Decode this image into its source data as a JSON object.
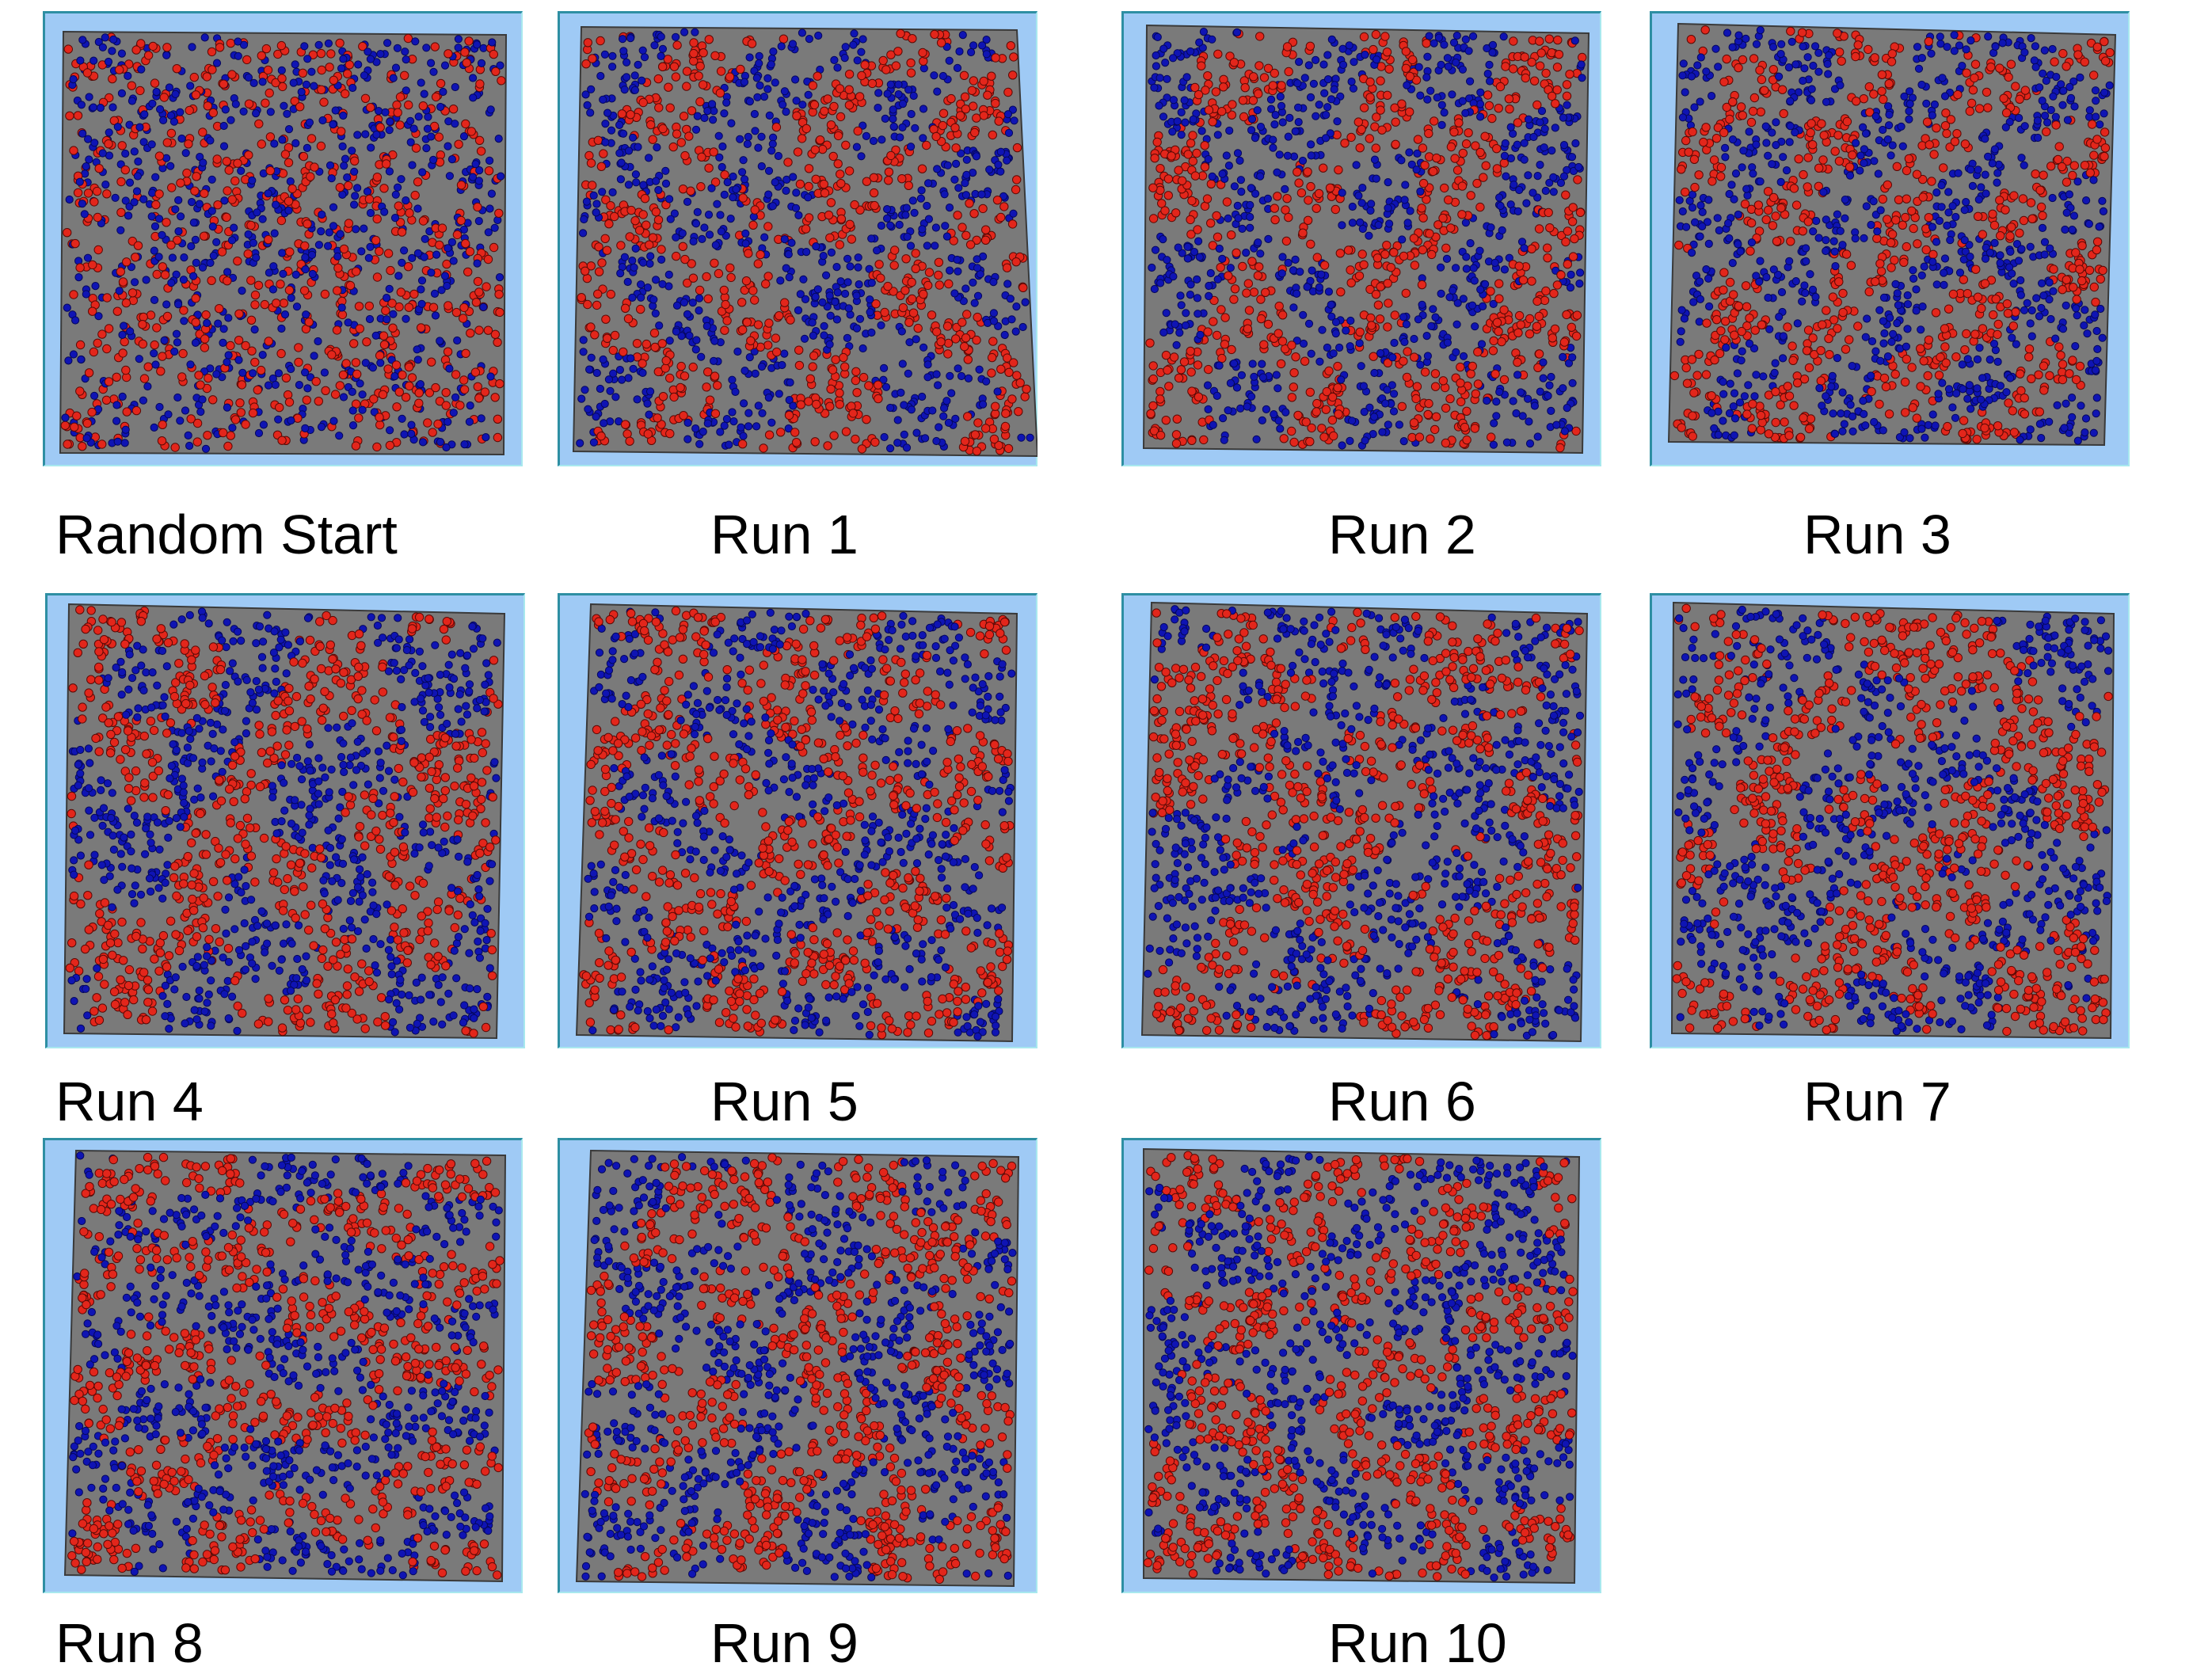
{
  "colors": {
    "background": "#ffffff",
    "frame": "#9fcaf5",
    "board": "#7a7a7a",
    "red_agent": "#e3261b",
    "blue_agent": "#0f14b4"
  },
  "panels": [
    {
      "caption": "Random Start"
    },
    {
      "caption": "Run 1"
    },
    {
      "caption": "Run 2"
    },
    {
      "caption": "Run 3"
    },
    {
      "caption": "Run 4"
    },
    {
      "caption": "Run 5"
    },
    {
      "caption": "Run 6"
    },
    {
      "caption": "Run 7"
    },
    {
      "caption": "Run 8"
    },
    {
      "caption": "Run 9"
    },
    {
      "caption": "Run 10"
    }
  ]
}
